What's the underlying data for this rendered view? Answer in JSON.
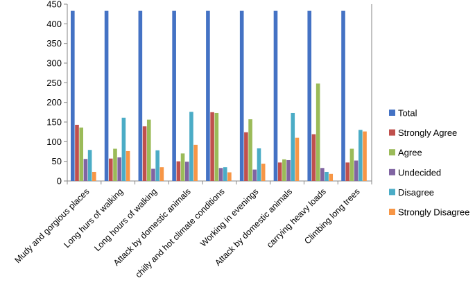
{
  "chart_data": {
    "type": "bar",
    "title": "",
    "xlabel": "",
    "ylabel": "",
    "ylim": [
      0,
      450
    ],
    "yticks": [
      0,
      50,
      100,
      150,
      200,
      250,
      300,
      350,
      400,
      450
    ],
    "grid": false,
    "legend_position": "right",
    "categories": [
      "Mudy and gorgious places",
      "Long hurs of walking",
      "Long hours of walking",
      "Attack by domestic animals",
      "chilly and hot climate conditions",
      "Working in evenings",
      "Attack by domestic animals",
      "carrying heavy loads",
      "Climbing long trees"
    ],
    "series": [
      {
        "name": "Total",
        "color": "#4472C4",
        "values": [
          433,
          433,
          433,
          433,
          433,
          433,
          433,
          433,
          433
        ]
      },
      {
        "name": "Strongly Agree",
        "color": "#C0504D",
        "values": [
          143,
          57,
          139,
          50,
          175,
          124,
          47,
          119,
          47
        ]
      },
      {
        "name": "Agree",
        "color": "#9BBB59",
        "values": [
          136,
          82,
          156,
          70,
          173,
          157,
          55,
          248,
          82
        ]
      },
      {
        "name": "Undecided",
        "color": "#8064A2",
        "values": [
          56,
          60,
          31,
          49,
          33,
          29,
          53,
          33,
          52
        ]
      },
      {
        "name": "Disagree",
        "color": "#4BACC6",
        "values": [
          79,
          161,
          78,
          176,
          35,
          83,
          173,
          23,
          130
        ]
      },
      {
        "name": "Strongly Disagree",
        "color": "#F79646",
        "values": [
          23,
          76,
          35,
          92,
          22,
          44,
          110,
          18,
          126
        ]
      }
    ]
  }
}
